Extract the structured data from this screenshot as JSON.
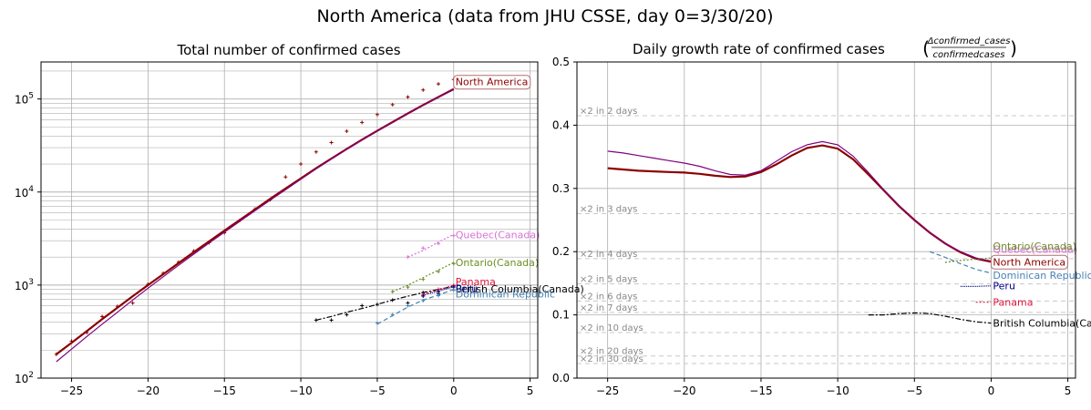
{
  "suptitle": "North America (data from JHU CSSE, day 0=3/30/20)",
  "chart_data": [
    {
      "type": "line",
      "title": "Total number of confirmed cases",
      "xlabel": "",
      "ylabel": "",
      "yscale": "log",
      "xlim": [
        -27,
        5.5
      ],
      "ylim": [
        100,
        250000
      ],
      "xticks": [
        -25,
        -20,
        -15,
        -10,
        -5,
        0,
        5
      ],
      "yticks": [
        {
          "v": 100,
          "label": "10",
          "exp": "2"
        },
        {
          "v": 1000,
          "label": "10",
          "exp": "3"
        },
        {
          "v": 10000,
          "label": "10",
          "exp": "4"
        },
        {
          "v": 100000,
          "label": "10",
          "exp": "5"
        }
      ],
      "grid": true,
      "series": [
        {
          "name": "North America",
          "color": "#8b0000",
          "width": 2.2,
          "dash": "",
          "x": [
            -26,
            -25,
            -24,
            -23,
            -22,
            -21,
            -20,
            -19,
            -18,
            -17,
            -16,
            -15,
            -14,
            -13,
            -12,
            -11,
            -10,
            -9,
            -8,
            -7,
            -6,
            -5,
            -4,
            -3,
            -2,
            -1,
            0
          ],
          "y": [
            180,
            240,
            320,
            430,
            570,
            760,
            1000,
            1310,
            1720,
            2260,
            2950,
            3850,
            5000,
            6500,
            8450,
            10900,
            14000,
            18000,
            22900,
            29000,
            36500,
            45500,
            56500,
            70000,
            86000,
            105000,
            128000
          ],
          "scatter": [
            180,
            250,
            310,
            460,
            590,
            640,
            1020,
            1340,
            1760,
            2320,
            2850,
            3650,
            4950,
            6550,
            8250,
            14500,
            20000,
            27000,
            34000,
            45000,
            56000,
            68000,
            87000,
            105000,
            125000,
            145000,
            162000
          ]
        },
        {
          "name": "",
          "color": "#800080",
          "width": 1.2,
          "dash": "",
          "x": [
            -26,
            -25,
            -24,
            -23,
            -22,
            -21,
            -20,
            -19,
            -18,
            -17,
            -16,
            -15,
            -14,
            -13,
            -12,
            -11,
            -10,
            -9,
            -8,
            -7,
            -6,
            -5,
            -4,
            -3,
            -2,
            -1,
            0
          ],
          "y": [
            150,
            205,
            280,
            380,
            510,
            690,
            925,
            1230,
            1630,
            2150,
            2830,
            3700,
            4830,
            6300,
            8200,
            10600,
            13700,
            17700,
            22600,
            28700,
            36200,
            45300,
            56300,
            69800,
            85700,
            104500,
            126000
          ],
          "scatter": []
        },
        {
          "name": "Quebec(Canada)",
          "color": "#da70d6",
          "width": 1.2,
          "dash": "2,2",
          "x": [
            -3,
            -2,
            -1,
            0
          ],
          "y": [
            2000,
            2350,
            2900,
            3500
          ],
          "scatter": [
            2000,
            2500,
            2800,
            3400
          ]
        },
        {
          "name": "Ontario(Canada)",
          "color": "#6b8e23",
          "width": 1.2,
          "dash": "2,2",
          "x": [
            -4,
            -3,
            -2,
            -1,
            0
          ],
          "y": [
            850,
            1000,
            1200,
            1450,
            1750
          ],
          "scatter": [
            850,
            950,
            1150,
            1400,
            1700
          ]
        },
        {
          "name": "British Columbia(Canada)",
          "color": "#000000",
          "width": 1.2,
          "dash": "6,2,2,2",
          "x": [
            -9,
            -8,
            -7,
            -6,
            -5,
            -4,
            -3,
            -2,
            -1,
            0
          ],
          "y": [
            420,
            460,
            510,
            560,
            620,
            690,
            760,
            830,
            900,
            970
          ],
          "scatter": [
            420,
            420,
            480,
            600,
            620,
            690,
            640,
            830,
            810,
            980
          ]
        },
        {
          "name": "Panama",
          "color": "#dc143c",
          "width": 1.2,
          "dash": "2,2",
          "x": [
            -2,
            -1,
            0
          ],
          "y": [
            800,
            880,
            1000
          ],
          "scatter": [
            780,
            900,
            990
          ]
        },
        {
          "name": "Peru",
          "color": "#00008b",
          "width": 1.2,
          "dash": "1,1",
          "x": [
            -2,
            -1,
            0
          ],
          "y": [
            780,
            860,
            960
          ],
          "scatter": [
            760,
            850,
            950
          ]
        },
        {
          "name": "Dominican Republic",
          "color": "#4682b4",
          "width": 1.2,
          "dash": "5,3",
          "x": [
            -5,
            -4,
            -3,
            -2,
            -1,
            0
          ],
          "y": [
            380,
            470,
            580,
            690,
            780,
            900
          ],
          "scatter": [
            390,
            480,
            600,
            680,
            770,
            880
          ]
        }
      ]
    },
    {
      "type": "line",
      "title": "Daily growth rate of confirmed cases",
      "title_fraction": {
        "numerator": "Δconfirmed_cases",
        "denominator": "confirmedcases"
      },
      "xlabel": "",
      "ylabel": "",
      "xlim": [
        -27,
        5.5
      ],
      "ylim": [
        0,
        0.5
      ],
      "xticks": [
        -25,
        -20,
        -15,
        -10,
        -5,
        0,
        5
      ],
      "yticks": [
        0.0,
        0.1,
        0.2,
        0.3,
        0.4,
        0.5
      ],
      "ytick_labels": [
        "0.0",
        "0.1",
        "0.2",
        "0.3",
        "0.4",
        "0.5"
      ],
      "grid": true,
      "guides": [
        {
          "label": "×2 in 2 days",
          "y": 0.415
        },
        {
          "label": "×2 in 3 days",
          "y": 0.26
        },
        {
          "label": "×2 in 4 days",
          "y": 0.189
        },
        {
          "label": "×2 in 5 days",
          "y": 0.149
        },
        {
          "label": "×2 in 6 days",
          "y": 0.122
        },
        {
          "label": "×2 in 7 days",
          "y": 0.104
        },
        {
          "label": "×2 in 10 days",
          "y": 0.072
        },
        {
          "label": "×2 in 20 days",
          "y": 0.035
        },
        {
          "label": "×2 in 30 days",
          "y": 0.023
        }
      ],
      "series": [
        {
          "name": "Quebec(Canada)",
          "color": "#da70d6",
          "width": 1.2,
          "dash": "",
          "x": [],
          "y": []
        },
        {
          "name": "North America",
          "color": "#8b0000",
          "width": 2.2,
          "dash": "",
          "x": [
            -25,
            -24,
            -23,
            -22,
            -21,
            -20,
            -19,
            -18,
            -17,
            -16,
            -15,
            -14,
            -13,
            -12,
            -11,
            -10,
            -9,
            -8,
            -7,
            -6,
            -5,
            -4,
            -3,
            -2,
            -1,
            0
          ],
          "y": [
            0.332,
            0.33,
            0.328,
            0.327,
            0.326,
            0.325,
            0.323,
            0.32,
            0.318,
            0.319,
            0.326,
            0.338,
            0.352,
            0.364,
            0.368,
            0.363,
            0.346,
            0.322,
            0.297,
            0.272,
            0.25,
            0.23,
            0.213,
            0.199,
            0.189,
            0.184
          ]
        },
        {
          "name": "",
          "color": "#800080",
          "width": 1.2,
          "dash": "",
          "x": [
            -25,
            -24,
            -23,
            -22,
            -21,
            -20,
            -19,
            -18,
            -17,
            -16,
            -15,
            -14,
            -13,
            -12,
            -11,
            -10,
            -9,
            -8,
            -7,
            -6,
            -5,
            -4,
            -3,
            -2,
            -1,
            0
          ],
          "y": [
            0.359,
            0.356,
            0.352,
            0.348,
            0.344,
            0.34,
            0.335,
            0.328,
            0.322,
            0.321,
            0.328,
            0.343,
            0.358,
            0.369,
            0.374,
            0.369,
            0.351,
            0.325,
            0.298,
            0.273,
            0.25,
            0.23,
            0.213,
            0.2,
            0.19,
            0.185
          ]
        },
        {
          "name": "Dominican Republic",
          "color": "#4682b4",
          "width": 1.2,
          "dash": "5,3",
          "x": [
            -4,
            -3,
            -2,
            -1,
            0
          ],
          "y": [
            0.2,
            0.191,
            0.181,
            0.172,
            0.166
          ]
        },
        {
          "name": "Ontario(Canada)",
          "color": "#6b8e23",
          "width": 1.2,
          "dash": "2,2",
          "x": [
            -3,
            -2,
            -1,
            0
          ],
          "y": [
            0.183,
            0.186,
            0.188,
            0.19
          ]
        },
        {
          "name": "Peru",
          "color": "#00008b",
          "width": 1.2,
          "dash": "1,1",
          "x": [
            -2,
            -1,
            0
          ],
          "y": [
            0.145,
            0.145,
            0.146
          ]
        },
        {
          "name": "Panama",
          "color": "#dc143c",
          "width": 1.2,
          "dash": "2,2",
          "x": [
            -1,
            0
          ],
          "y": [
            0.12,
            0.12
          ]
        },
        {
          "name": "British Columbia(Canada)",
          "color": "#000000",
          "width": 1.2,
          "dash": "6,2,2,2",
          "x": [
            -8,
            -7,
            -6,
            -5,
            -4,
            -3,
            -2,
            -1,
            0
          ],
          "y": [
            0.1,
            0.1,
            0.102,
            0.103,
            0.102,
            0.098,
            0.093,
            0.089,
            0.087
          ]
        }
      ]
    }
  ]
}
